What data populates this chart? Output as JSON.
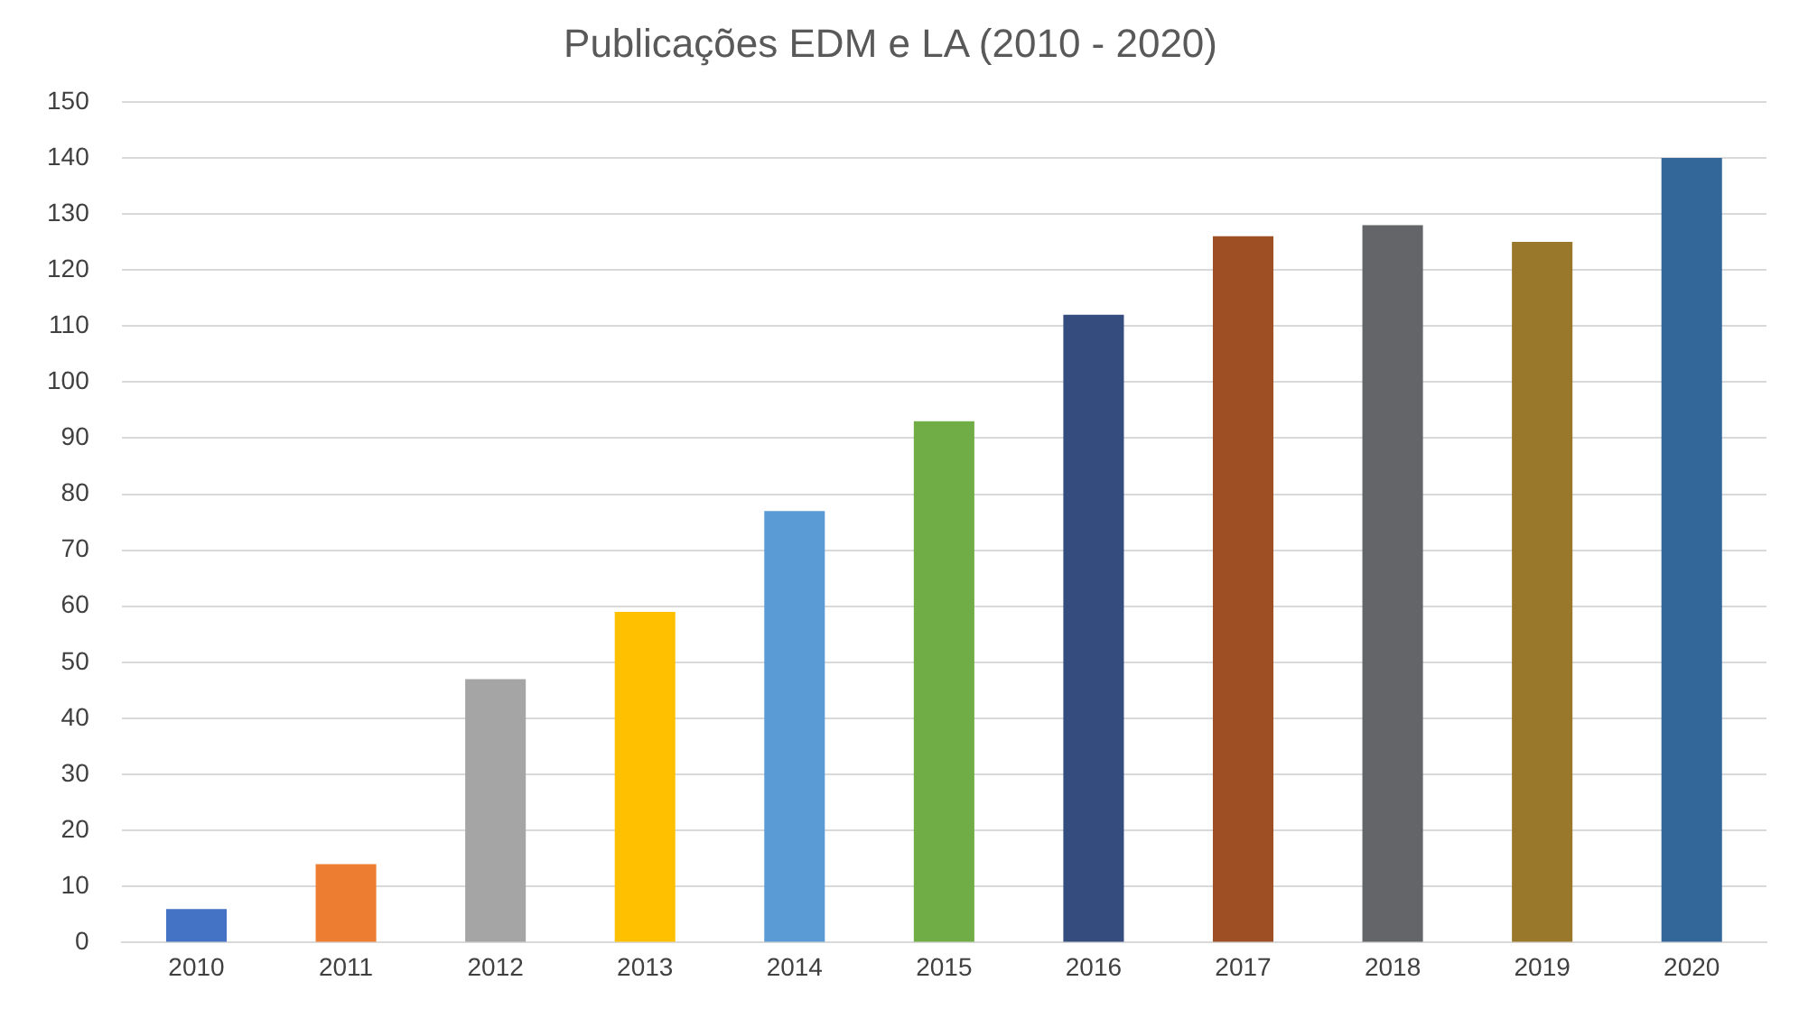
{
  "chart_data": {
    "type": "bar",
    "title": "Publicações EDM e LA (2010 - 2020)",
    "categories": [
      "2010",
      "2011",
      "2012",
      "2013",
      "2014",
      "2015",
      "2016",
      "2017",
      "2018",
      "2019",
      "2020"
    ],
    "values": [
      6,
      14,
      47,
      59,
      77,
      93,
      112,
      126,
      128,
      125,
      140
    ],
    "colors": [
      "#4472c4",
      "#ed7d31",
      "#a5a5a5",
      "#ffc000",
      "#5b9bd5",
      "#70ad47",
      "#344d7e",
      "#9e4f24",
      "#636569",
      "#99772b",
      "#336699"
    ],
    "ylim": [
      0,
      150
    ],
    "yticks": [
      0,
      10,
      20,
      30,
      40,
      50,
      60,
      70,
      80,
      90,
      100,
      110,
      120,
      130,
      140,
      150
    ],
    "grid": "y",
    "legend": false
  }
}
